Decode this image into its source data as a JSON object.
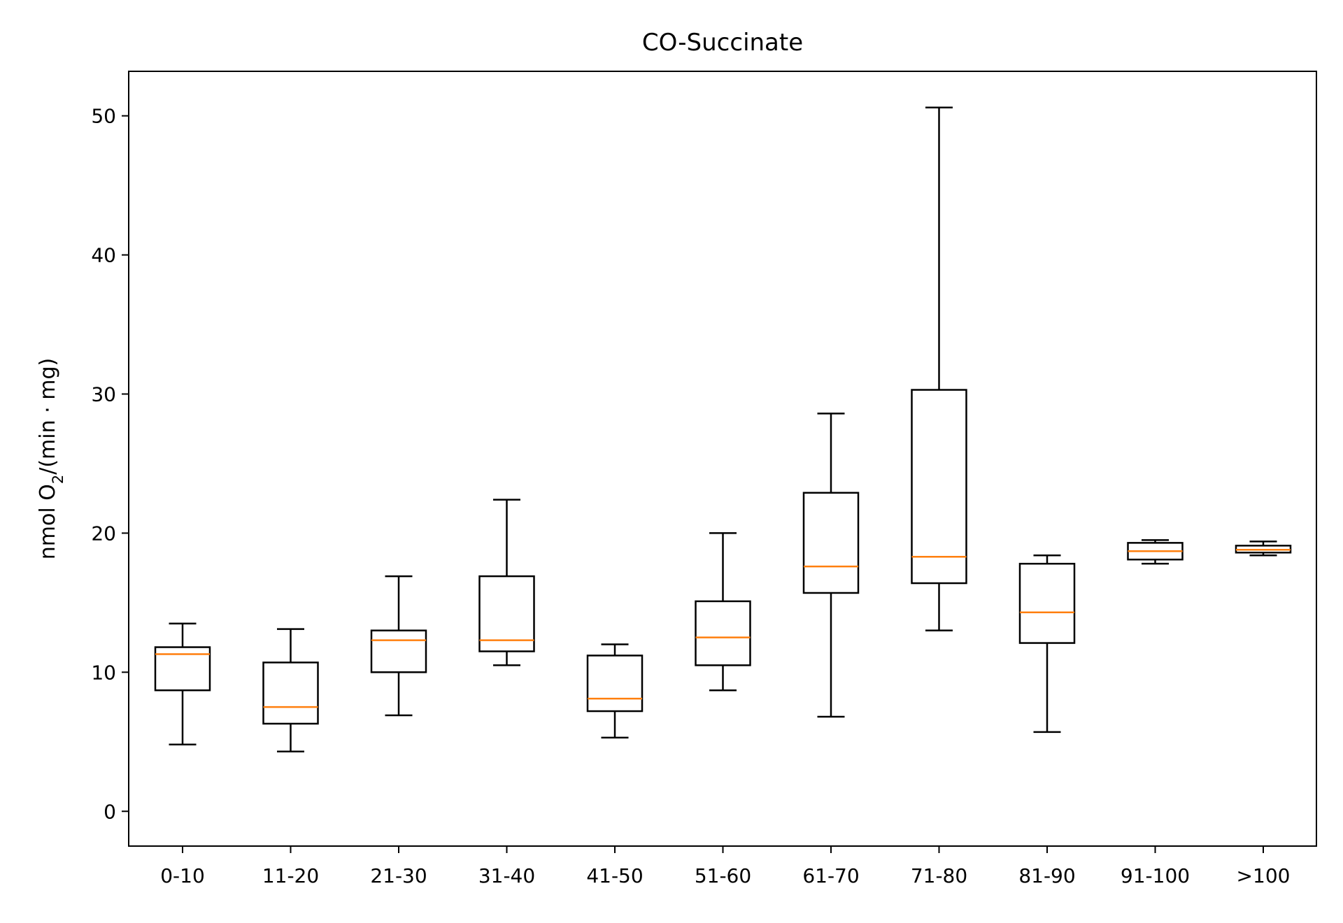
{
  "chart_data": {
    "type": "boxplot",
    "title": "CO-Succinate",
    "xlabel": "",
    "ylabel": {
      "prefix": "nmol O",
      "subscript": "2",
      "suffix": "/(min · mg)"
    },
    "ylim": [
      -2.5,
      53.2
    ],
    "yticks": [
      0,
      10,
      20,
      30,
      40,
      50
    ],
    "grid": false,
    "categories": [
      "0-10",
      "11-20",
      "21-30",
      "31-40",
      "41-50",
      "51-60",
      "61-70",
      "71-80",
      "81-90",
      "91-100",
      ">100"
    ],
    "boxes": [
      {
        "whisker_low": 4.8,
        "q1": 8.7,
        "median": 11.3,
        "q3": 11.8,
        "whisker_high": 13.5
      },
      {
        "whisker_low": 4.3,
        "q1": 6.3,
        "median": 7.5,
        "q3": 10.7,
        "whisker_high": 13.1
      },
      {
        "whisker_low": 6.9,
        "q1": 10.0,
        "median": 12.3,
        "q3": 13.0,
        "whisker_high": 16.9
      },
      {
        "whisker_low": 10.5,
        "q1": 11.5,
        "median": 12.3,
        "q3": 16.9,
        "whisker_high": 22.4
      },
      {
        "whisker_low": 5.3,
        "q1": 7.2,
        "median": 8.1,
        "q3": 11.2,
        "whisker_high": 12.0
      },
      {
        "whisker_low": 8.7,
        "q1": 10.5,
        "median": 12.5,
        "q3": 15.1,
        "whisker_high": 20.0
      },
      {
        "whisker_low": 6.8,
        "q1": 15.7,
        "median": 17.6,
        "q3": 22.9,
        "whisker_high": 28.6
      },
      {
        "whisker_low": 13.0,
        "q1": 16.4,
        "median": 18.3,
        "q3": 30.3,
        "whisker_high": 50.6
      },
      {
        "whisker_low": 5.7,
        "q1": 12.1,
        "median": 14.3,
        "q3": 17.8,
        "whisker_high": 18.4
      },
      {
        "whisker_low": 17.8,
        "q1": 18.1,
        "median": 18.7,
        "q3": 19.3,
        "whisker_high": 19.5
      },
      {
        "whisker_low": 18.4,
        "q1": 18.6,
        "median": 18.8,
        "q3": 19.1,
        "whisker_high": 19.4
      }
    ],
    "colors": {
      "box": "#000000",
      "median": "#ff7f0e"
    }
  }
}
